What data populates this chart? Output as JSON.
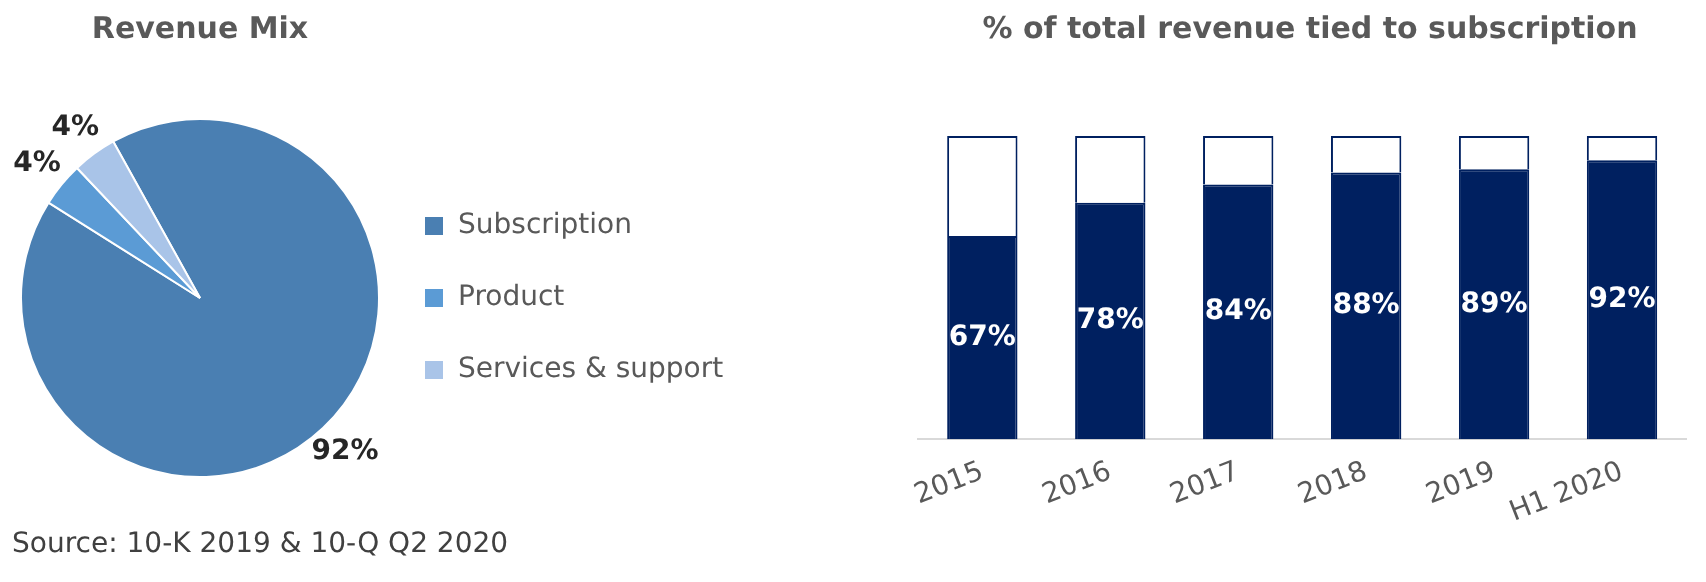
{
  "chart_data": [
    {
      "type": "pie",
      "title": "Revenue Mix",
      "categories": [
        "Subscription",
        "Product",
        "Services & support"
      ],
      "values": [
        92,
        4,
        4
      ],
      "colors": [
        "#4a7fb2",
        "#5b9bd5",
        "#a9c4e8"
      ],
      "value_labels": [
        "92%",
        "4%",
        "4%"
      ],
      "legend": "right",
      "annotations": [
        "Source: 10-K 2019 & 10-Q Q2 2020"
      ]
    },
    {
      "type": "bar",
      "title": "% of total revenue tied to subscription",
      "stacked": true,
      "categories": [
        "2015",
        "2016",
        "2017",
        "2018",
        "2019",
        "H1 2020"
      ],
      "ylim": [
        0,
        100
      ],
      "tick_labels": "x",
      "legend": false,
      "grid": false,
      "series": [
        {
          "color": "#002060",
          "values": [
            67,
            78,
            84,
            88,
            89,
            92
          ],
          "value_labels": [
            "67%",
            "78%",
            "84%",
            "88%",
            "89%",
            "92%"
          ]
        },
        {
          "color": "#ffffff",
          "values": [
            33,
            22,
            16,
            12,
            11,
            8
          ]
        }
      ]
    }
  ]
}
